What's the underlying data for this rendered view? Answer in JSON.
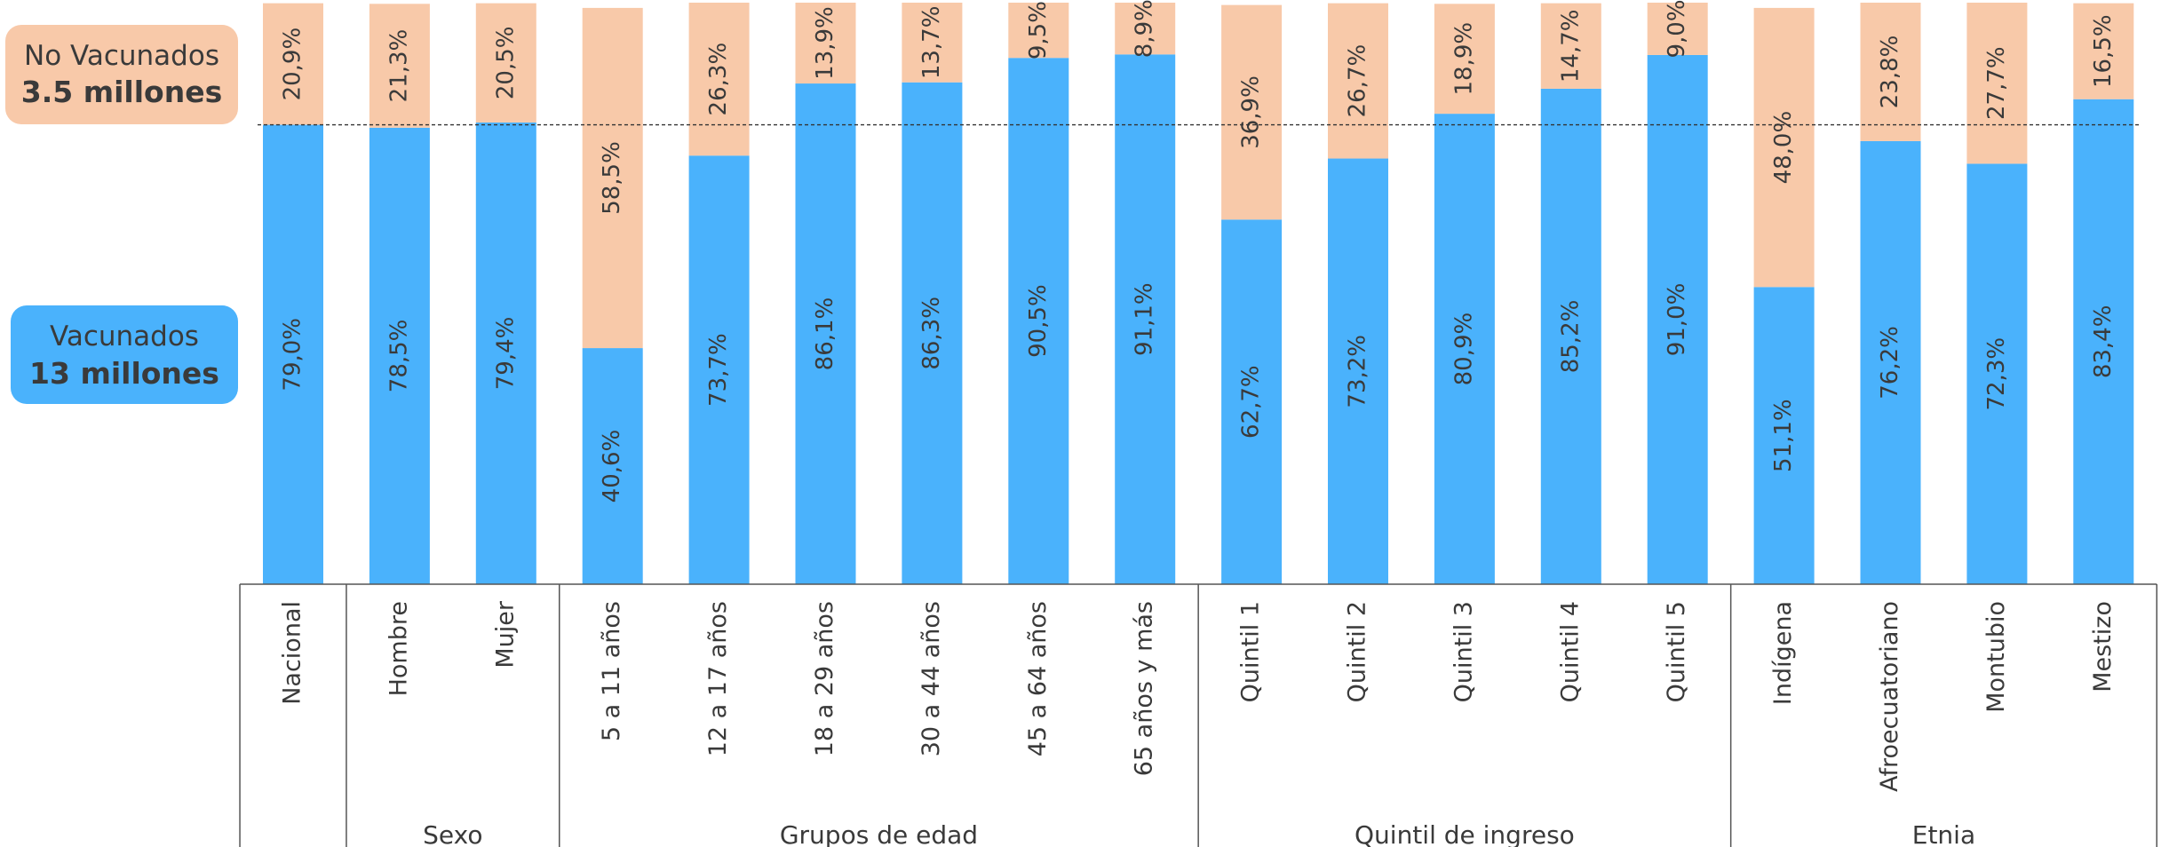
{
  "chart_data": {
    "type": "stacked_bar",
    "categories": [
      "Nacional",
      "Hombre",
      "Mujer",
      "5  a 11 años",
      "12 a 17 años",
      "18 a 29 años",
      "30 a 44 años",
      "45 a 64 años",
      "65 años y más",
      "Quintil 1",
      "Quintil 2",
      "Quintil 3",
      "Quintil 4",
      "Quintil 5",
      "Indígena",
      "Afroecuatoriano",
      "Montubio",
      "Mestizo"
    ],
    "category_groups": [
      null,
      "Sexo",
      "Sexo",
      "Grupos de edad",
      "Grupos de edad",
      "Grupos de edad",
      "Grupos de edad",
      "Grupos de edad",
      "Grupos de edad",
      "Quintil de ingreso",
      "Quintil de ingreso",
      "Quintil de ingreso",
      "Quintil de ingreso",
      "Quintil de ingreso",
      "Etnia",
      "Etnia",
      "Etnia",
      "Etnia"
    ],
    "series": [
      {
        "name": "Vacunados",
        "subtitle": "13 millones",
        "color": "#4ab2fc",
        "values": [
          79.0,
          78.5,
          79.4,
          40.6,
          73.7,
          86.1,
          86.3,
          90.5,
          91.1,
          62.7,
          73.2,
          80.9,
          85.2,
          91.0,
          51.1,
          76.2,
          72.3,
          83.4
        ],
        "value_labels": [
          "79,0%",
          "78,5%",
          "79,4%",
          "40,6%",
          "73,7%",
          "86,1%",
          "86,3%",
          "90,5%",
          "91,1%",
          "62,7%",
          "73,2%",
          "80,9%",
          "85,2%",
          "91,0%",
          "51,1%",
          "76,2%",
          "72,3%",
          "83,4%"
        ]
      },
      {
        "name": "No Vacunados",
        "subtitle": "3.5 millones",
        "color": "#f8c9a9",
        "values": [
          20.9,
          21.3,
          20.5,
          58.5,
          26.3,
          13.9,
          13.7,
          9.5,
          8.9,
          36.9,
          26.7,
          18.9,
          14.7,
          9.0,
          48.0,
          23.8,
          27.7,
          16.5
        ],
        "value_labels": [
          "20,9%",
          "21,3%",
          "20,5%",
          "58,5%",
          "26,3%",
          "13,9%",
          "13,7%",
          "9,5%",
          "8,9%",
          "36,9%",
          "26,7%",
          "18,9%",
          "14,7%",
          "9,0%",
          "48,0%",
          "23,8%",
          "27,7%",
          "16,5%"
        ]
      }
    ],
    "ylim": [
      0,
      100
    ],
    "reference_line": "chart_data.series.0.values.0"
  }
}
